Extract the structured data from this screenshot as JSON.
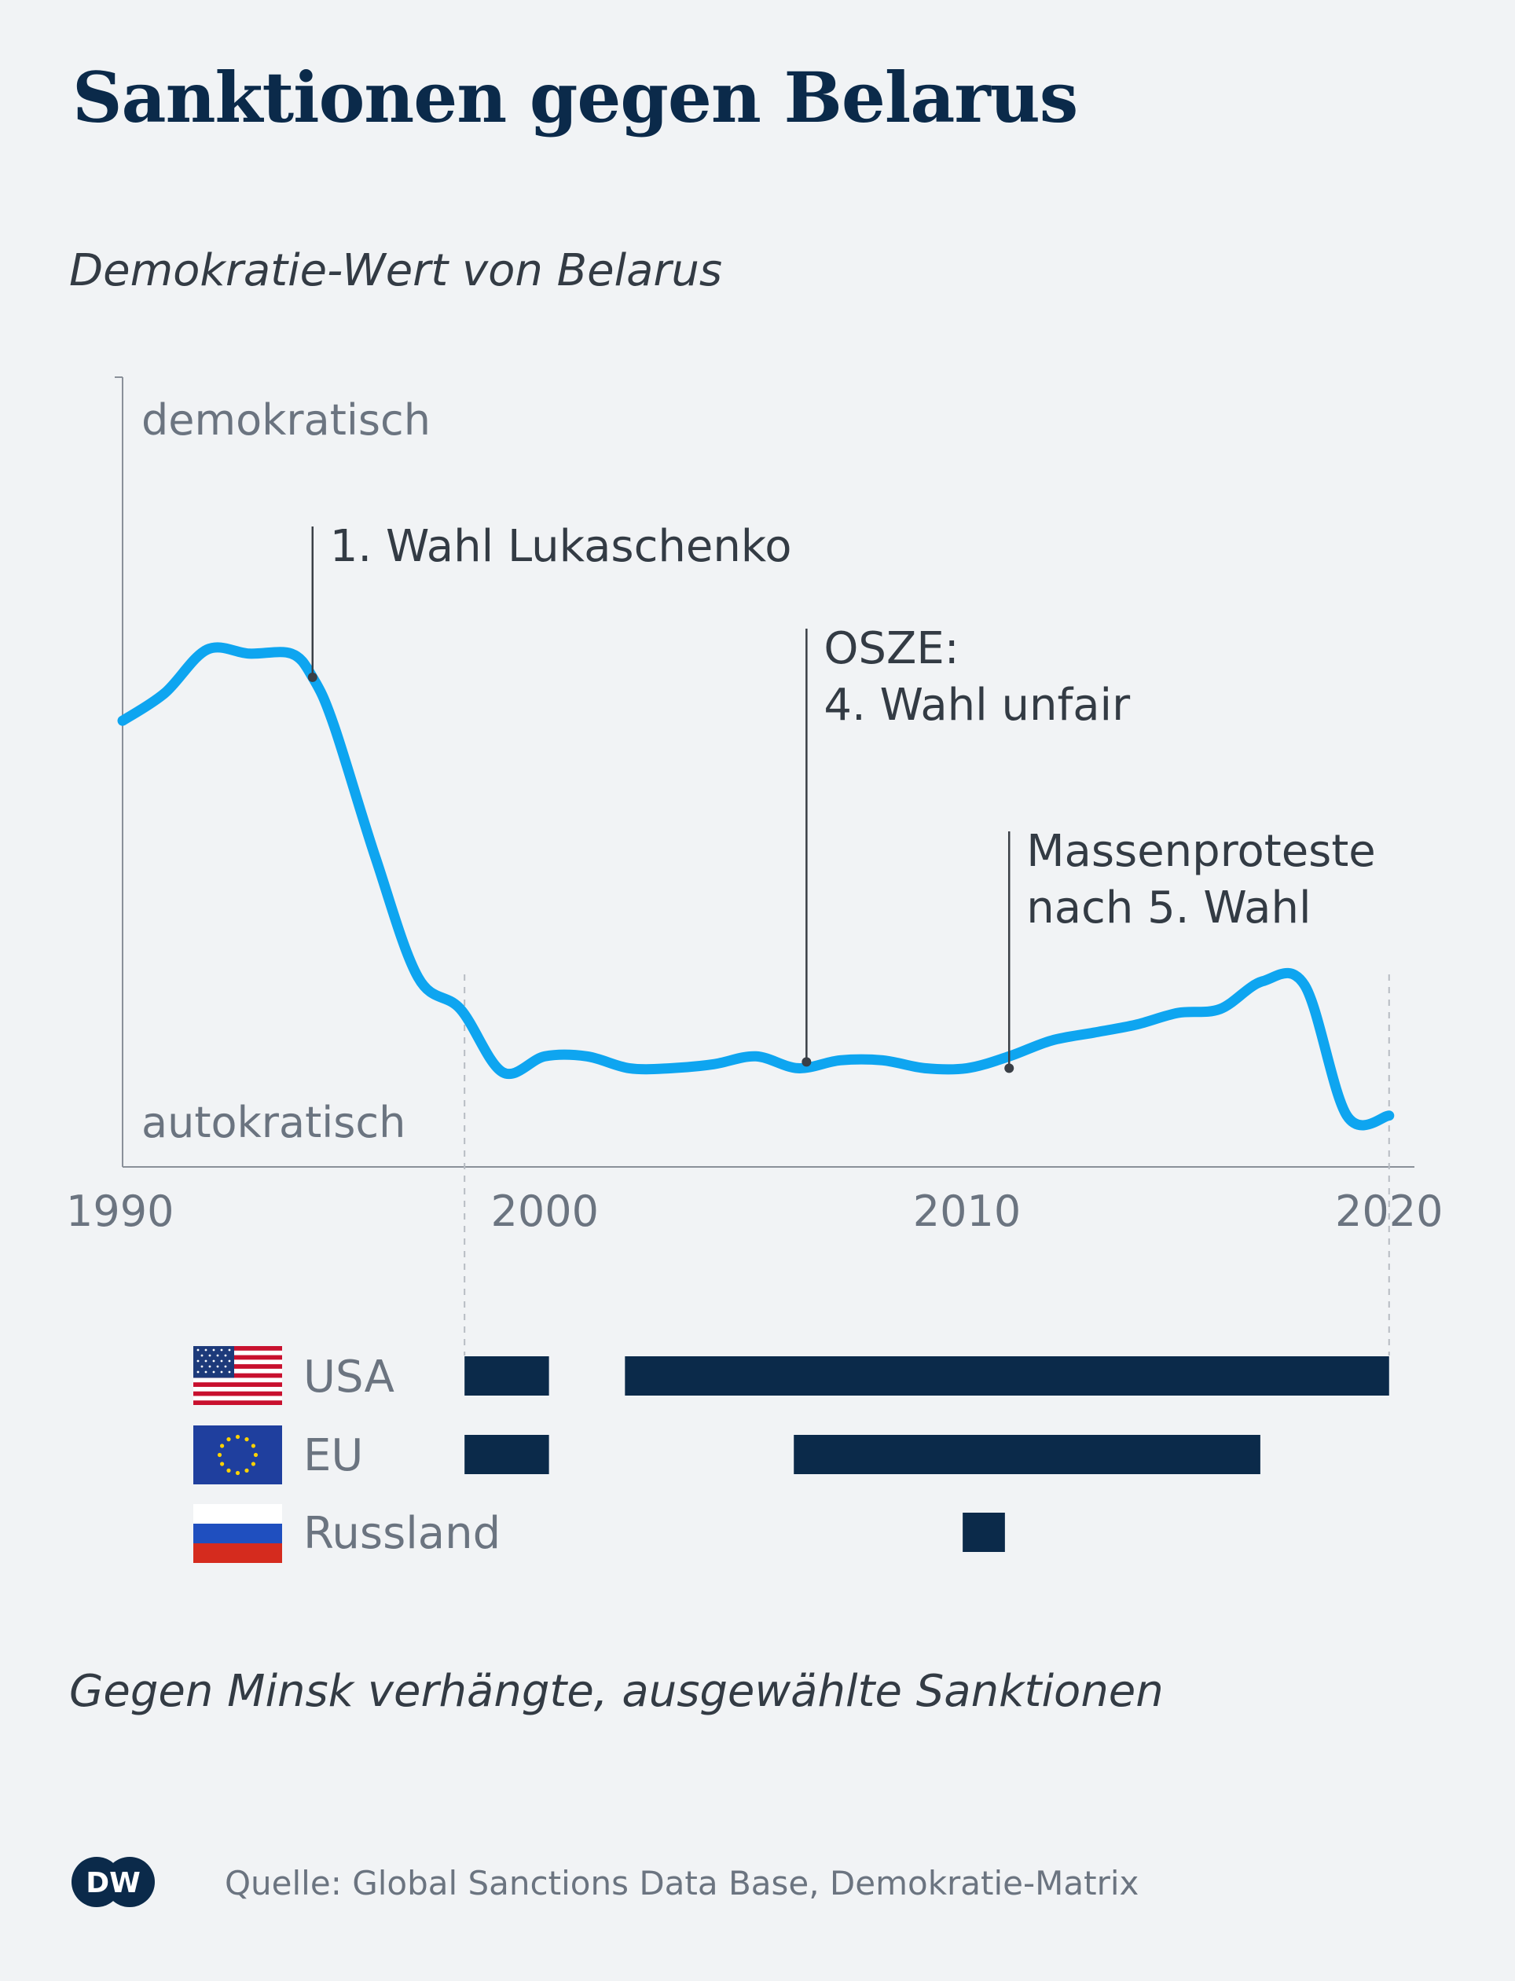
{
  "title": "Sanktionen gegen Belarus",
  "subtitle": "Demokratie-Wert von Belarus",
  "footnote": "Gegen Minsk verhängte, ausgewählte Sanktionen",
  "source": "Quelle: Global Sanctions Data Base, Demokratie-Matrix",
  "logo_text": "DW",
  "colors": {
    "line": "#0ea5f0",
    "bars": "#0b2a4a",
    "title": "#0b2a4a",
    "text": "#333b44",
    "axis": "#6b7480",
    "background": "#f1f3f5"
  },
  "chart_data": [
    {
      "type": "line",
      "title": "Demokratie-Wert von Belarus",
      "y_axis_top_label": "demokratisch",
      "y_axis_bottom_label": "autokratisch",
      "xlim": [
        1990,
        2020.6
      ],
      "ylim": [
        0,
        100
      ],
      "x_ticks": [
        1990,
        2000,
        2010,
        2020
      ],
      "grid": false,
      "series": [
        {
          "x": [
            1990,
            1991,
            1992,
            1993,
            1994,
            1994.5,
            1995,
            1996,
            1997,
            1998,
            1999,
            2000,
            2001,
            2002,
            2003,
            2004,
            2005,
            2006,
            2007,
            2008,
            2009,
            2010,
            2011,
            2012,
            2013,
            2014,
            2015,
            2016,
            2017,
            2018,
            2019,
            2020
          ],
          "y": [
            56.5,
            60,
            65.5,
            65,
            65,
            62,
            56,
            39,
            24,
            20,
            12,
            14,
            14,
            12.5,
            12.5,
            13,
            14,
            12.5,
            13.5,
            13.5,
            12.5,
            12.5,
            14,
            16,
            17,
            18,
            19.5,
            20,
            23.5,
            23,
            6.5,
            6.5
          ]
        }
      ],
      "annotations": [
        {
          "x": 1994.5,
          "y": 62,
          "text_lines": [
            "1. Wahl Lukaschenko"
          ]
        },
        {
          "x": 2006.2,
          "y": 13.3,
          "text_lines": [
            "OSZE:",
            "4. Wahl unfair"
          ]
        },
        {
          "x": 2011.0,
          "y": 12.5,
          "text_lines": [
            "Massenproteste",
            "nach 5. Wahl"
          ]
        }
      ]
    },
    {
      "type": "timeline",
      "title": "Gegen Minsk verhängte, ausgewählte Sanktionen",
      "xlim": [
        1990,
        2020.6
      ],
      "reference_lines_x": [
        1998.1,
        2020
      ],
      "series": [
        {
          "name": "USA",
          "flag": "us-flag",
          "periods": [
            [
              1998.1,
              2000.1
            ],
            [
              2001.9,
              2020
            ]
          ]
        },
        {
          "name": "EU",
          "flag": "eu-flag",
          "periods": [
            [
              1998.1,
              2000.1
            ],
            [
              2005.9,
              2016.95
            ]
          ]
        },
        {
          "name": "Russland",
          "flag": "ru-flag",
          "periods": [
            [
              2009.9,
              2010.9
            ]
          ]
        }
      ]
    }
  ]
}
